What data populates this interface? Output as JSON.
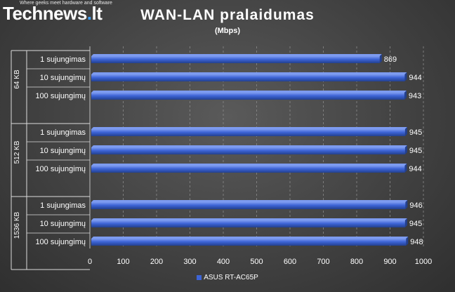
{
  "logo": {
    "slogan": "Where geeks meet hardware and software",
    "word_t": "T",
    "word_e": "e",
    "word_rest": "chnews",
    "word_dot": ".",
    "word_lt": "lt"
  },
  "chart_data": {
    "type": "bar",
    "orientation": "horizontal",
    "title": "WAN-LAN  pralaidumas",
    "subtitle": "(Mbps)",
    "groups": [
      {
        "label": "64 KB",
        "categories": [
          "1 sujungimas",
          "10  sujungimų",
          "100 sujungimų"
        ],
        "values": [
          869,
          944,
          943
        ]
      },
      {
        "label": "512 KB",
        "categories": [
          "1 sujungimas",
          "10  sujungimų",
          "100 sujungimų"
        ],
        "values": [
          945,
          945,
          944
        ]
      },
      {
        "label": "1536 KB",
        "categories": [
          "1 sujungimas",
          "10  sujungimų",
          "100 sujungimų"
        ],
        "values": [
          946,
          945,
          948
        ]
      }
    ],
    "series": [
      {
        "name": "ASUS RT-AC65P"
      }
    ],
    "xlim": [
      0,
      1000
    ],
    "xticks": [
      0,
      100,
      200,
      300,
      400,
      500,
      600,
      700,
      800,
      900,
      1000
    ],
    "grid": "vertical dashed",
    "legend": "bottom",
    "colors": {
      "bar": "#3d64d6",
      "bar_dark": "#23408f",
      "bar_light": "#7d9bf0",
      "text": "#ffffff",
      "grid": "#8a8a8a"
    }
  }
}
